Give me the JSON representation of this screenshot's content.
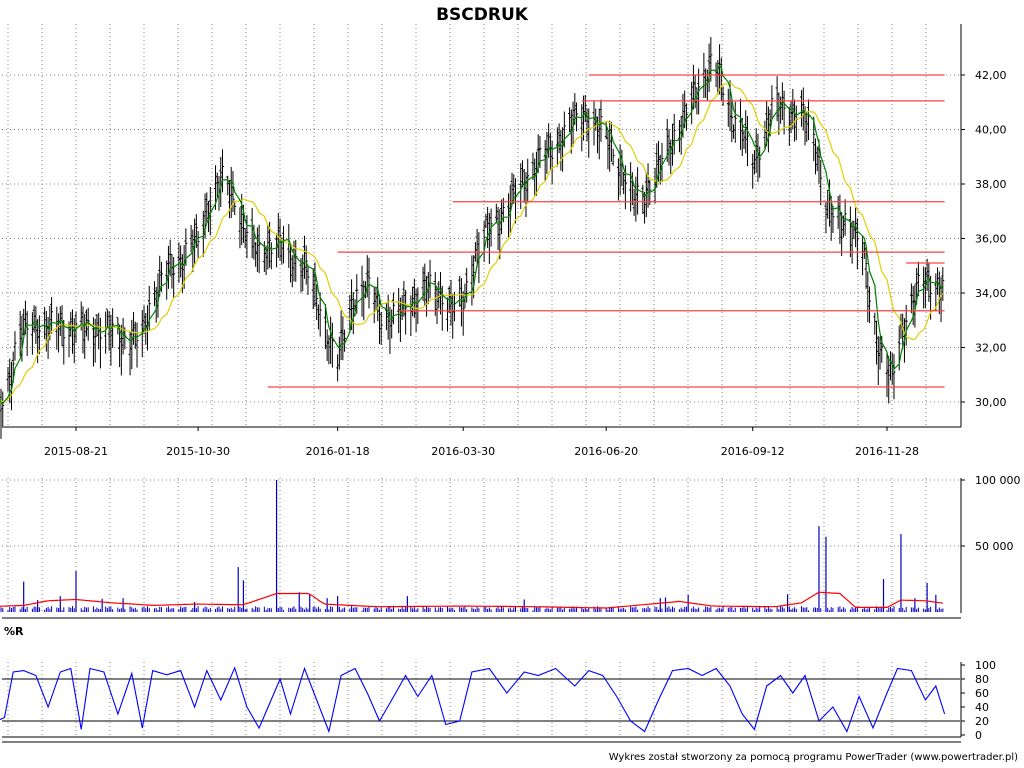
{
  "chart_data": [
    {
      "type": "ohlc",
      "title": "BSCDRUK",
      "x_labels": [
        "2015-08-21",
        "2015-10-30",
        "2016-01-18",
        "2016-03-30",
        "2016-06-20",
        "2016-09-12",
        "2016-11-28"
      ],
      "y_ticks": [
        "30,00",
        "32,00",
        "34,00",
        "36,00",
        "38,00",
        "40,00",
        "42,00"
      ],
      "ylim": [
        29.0,
        43.2
      ],
      "grid": true,
      "support_resistance": [
        {
          "from": "2016-06-10",
          "to": "2016-12-31",
          "value": 42.0
        },
        {
          "from": "2016-06-06",
          "to": "2016-12-31",
          "value": 41.05
        },
        {
          "from": "2016-03-24",
          "to": "2016-12-31",
          "value": 37.35
        },
        {
          "from": "2016-01-18",
          "to": "2016-12-31",
          "value": 35.5
        },
        {
          "from": "2016-12-09",
          "to": "2016-12-31",
          "value": 35.1
        },
        {
          "from": "2016-02-22",
          "to": "2016-12-31",
          "value": 33.35
        },
        {
          "from": "2015-12-09",
          "to": "2016-12-31",
          "value": 30.55
        }
      ],
      "price_anchors": [
        [
          "2015-07-01",
          30.0
        ],
        [
          "2015-07-08",
          29.8
        ],
        [
          "2015-07-14",
          31.0
        ],
        [
          "2015-07-20",
          32.6
        ],
        [
          "2015-07-28",
          33.0
        ],
        [
          "2015-08-04",
          32.7
        ],
        [
          "2015-08-11",
          32.9
        ],
        [
          "2015-08-21",
          32.7
        ],
        [
          "2015-09-01",
          32.8
        ],
        [
          "2015-09-10",
          32.6
        ],
        [
          "2015-09-20",
          32.4
        ],
        [
          "2015-09-28",
          32.4
        ],
        [
          "2015-10-03",
          33.8
        ],
        [
          "2015-10-10",
          34.7
        ],
        [
          "2015-10-20",
          35.2
        ],
        [
          "2015-10-26",
          36.0
        ],
        [
          "2015-10-30",
          35.8
        ],
        [
          "2015-11-06",
          37.6
        ],
        [
          "2015-11-12",
          38.2
        ],
        [
          "2015-11-20",
          37.5
        ],
        [
          "2015-11-27",
          36.3
        ],
        [
          "2015-12-04",
          35.4
        ],
        [
          "2015-12-10",
          35.9
        ],
        [
          "2015-12-16",
          35.9
        ],
        [
          "2015-12-22",
          35.3
        ],
        [
          "2015-12-30",
          35.2
        ],
        [
          "2016-01-08",
          33.3
        ],
        [
          "2016-01-18",
          31.6
        ],
        [
          "2016-01-28",
          34.0
        ],
        [
          "2016-02-05",
          34.3
        ],
        [
          "2016-02-12",
          33.3
        ],
        [
          "2016-02-20",
          33.1
        ],
        [
          "2016-02-28",
          33.7
        ],
        [
          "2016-03-08",
          34.2
        ],
        [
          "2016-03-18",
          34.0
        ],
        [
          "2016-03-24",
          33.5
        ],
        [
          "2016-03-30",
          33.7
        ],
        [
          "2016-04-06",
          35.5
        ],
        [
          "2016-04-14",
          36.4
        ],
        [
          "2016-04-22",
          37.0
        ],
        [
          "2016-05-02",
          38.0
        ],
        [
          "2016-05-12",
          38.9
        ],
        [
          "2016-05-22",
          39.5
        ],
        [
          "2016-06-01",
          40.3
        ],
        [
          "2016-06-08",
          40.7
        ],
        [
          "2016-06-15",
          40.1
        ],
        [
          "2016-06-22",
          39.6
        ],
        [
          "2016-06-28",
          38.7
        ],
        [
          "2016-07-04",
          37.6
        ],
        [
          "2016-07-10",
          37.6
        ],
        [
          "2016-07-18",
          38.3
        ],
        [
          "2016-07-26",
          39.5
        ],
        [
          "2016-08-04",
          40.5
        ],
        [
          "2016-08-12",
          41.7
        ],
        [
          "2016-08-20",
          42.5
        ],
        [
          "2016-08-26",
          41.6
        ],
        [
          "2016-09-01",
          40.5
        ],
        [
          "2016-09-06",
          40.0
        ],
        [
          "2016-09-12",
          38.8
        ],
        [
          "2016-09-18",
          39.8
        ],
        [
          "2016-09-24",
          40.9
        ],
        [
          "2016-10-02",
          40.8
        ],
        [
          "2016-10-10",
          40.6
        ],
        [
          "2016-10-18",
          39.6
        ],
        [
          "2016-10-24",
          37.3
        ],
        [
          "2016-10-30",
          36.6
        ],
        [
          "2016-11-06",
          36.8
        ],
        [
          "2016-11-14",
          35.6
        ],
        [
          "2016-11-20",
          33.0
        ],
        [
          "2016-11-26",
          31.5
        ],
        [
          "2016-12-01",
          30.9
        ],
        [
          "2016-12-06",
          32.6
        ],
        [
          "2016-12-12",
          33.7
        ],
        [
          "2016-12-18",
          34.4
        ],
        [
          "2016-12-24",
          34.5
        ],
        [
          "2016-12-31",
          34.2
        ]
      ],
      "series": [
        {
          "name": "close",
          "color": "#000000"
        },
        {
          "name": "ma_short",
          "color": "#008000"
        },
        {
          "name": "ma_long",
          "color": "#e0d000"
        }
      ],
      "colors": {
        "resistance": "#ff4040",
        "grid": "#808080"
      }
    },
    {
      "type": "bar",
      "y_ticks": [
        "50 000",
        "100 000"
      ],
      "ylim": [
        0,
        100000
      ],
      "grid": true,
      "spikes": [
        [
          "2015-07-04",
          14000
        ],
        [
          "2015-07-22",
          23000
        ],
        [
          "2015-07-30",
          9000
        ],
        [
          "2015-08-12",
          12000
        ],
        [
          "2015-08-21",
          31000
        ],
        [
          "2015-09-05",
          10000
        ],
        [
          "2015-09-17",
          10500
        ],
        [
          "2015-10-28",
          7500
        ],
        [
          "2015-11-22",
          34000
        ],
        [
          "2015-11-25",
          24000
        ],
        [
          "2015-12-14",
          100000
        ],
        [
          "2015-12-27",
          15000
        ],
        [
          "2016-01-02",
          14000
        ],
        [
          "2016-01-12",
          10500
        ],
        [
          "2016-01-18",
          12000
        ],
        [
          "2016-02-27",
          12000
        ],
        [
          "2016-05-04",
          9500
        ],
        [
          "2016-07-21",
          10500
        ],
        [
          "2016-07-24",
          11000
        ],
        [
          "2016-08-06",
          13000
        ],
        [
          "2016-10-02",
          13500
        ],
        [
          "2016-10-20",
          65000
        ],
        [
          "2016-10-24",
          57000
        ],
        [
          "2016-11-26",
          25000
        ],
        [
          "2016-12-06",
          59000
        ],
        [
          "2016-12-14",
          10500
        ],
        [
          "2016-12-21",
          22000
        ],
        [
          "2016-12-26",
          13000
        ]
      ],
      "ma_anchors": [
        [
          "2015-07-01",
          4000
        ],
        [
          "2015-07-22",
          5000
        ],
        [
          "2015-08-05",
          8500
        ],
        [
          "2015-08-21",
          9500
        ],
        [
          "2015-09-10",
          7000
        ],
        [
          "2015-10-05",
          5000
        ],
        [
          "2015-10-28",
          6000
        ],
        [
          "2015-11-25",
          5500
        ],
        [
          "2015-12-14",
          14000
        ],
        [
          "2016-01-02",
          14000
        ],
        [
          "2016-01-10",
          6000
        ],
        [
          "2016-02-10",
          4000
        ],
        [
          "2016-03-30",
          4500
        ],
        [
          "2016-05-10",
          4000
        ],
        [
          "2016-06-20",
          3000
        ],
        [
          "2016-08-01",
          8000
        ],
        [
          "2016-08-20",
          4500
        ],
        [
          "2016-09-25",
          4000
        ],
        [
          "2016-10-10",
          7000
        ],
        [
          "2016-10-20",
          15000
        ],
        [
          "2016-11-01",
          14000
        ],
        [
          "2016-11-10",
          3500
        ],
        [
          "2016-11-28",
          3500
        ],
        [
          "2016-12-06",
          9000
        ],
        [
          "2016-12-20",
          8500
        ],
        [
          "2016-12-31",
          6500
        ]
      ],
      "colors": {
        "bars": "#0000c0",
        "ma": "#ff0000"
      }
    },
    {
      "type": "line",
      "name": "%R",
      "y_ticks": [
        "0",
        "20",
        "40",
        "60",
        "80",
        "100"
      ],
      "ylim": [
        0,
        100
      ],
      "levels": [
        20,
        80
      ],
      "points": [
        [
          "2015-07-01",
          45
        ],
        [
          "2015-07-05",
          18
        ],
        [
          "2015-07-11",
          25
        ],
        [
          "2015-07-16",
          90
        ],
        [
          "2015-07-22",
          92
        ],
        [
          "2015-07-29",
          85
        ],
        [
          "2015-08-05",
          40
        ],
        [
          "2015-08-12",
          90
        ],
        [
          "2015-08-18",
          95
        ],
        [
          "2015-08-24",
          8
        ],
        [
          "2015-08-29",
          95
        ],
        [
          "2015-09-06",
          90
        ],
        [
          "2015-09-14",
          30
        ],
        [
          "2015-09-22",
          88
        ],
        [
          "2015-09-28",
          10
        ],
        [
          "2015-10-04",
          92
        ],
        [
          "2015-10-12",
          86
        ],
        [
          "2015-10-20",
          92
        ],
        [
          "2015-10-28",
          40
        ],
        [
          "2015-11-04",
          92
        ],
        [
          "2015-11-12",
          50
        ],
        [
          "2015-11-20",
          96
        ],
        [
          "2015-11-27",
          40
        ],
        [
          "2015-12-04",
          10
        ],
        [
          "2015-12-10",
          45
        ],
        [
          "2015-12-16",
          80
        ],
        [
          "2015-12-22",
          30
        ],
        [
          "2015-12-30",
          95
        ],
        [
          "2016-01-06",
          50
        ],
        [
          "2016-01-13",
          5
        ],
        [
          "2016-01-20",
          85
        ],
        [
          "2016-01-28",
          95
        ],
        [
          "2016-02-04",
          60
        ],
        [
          "2016-02-11",
          20
        ],
        [
          "2016-02-18",
          50
        ],
        [
          "2016-02-26",
          85
        ],
        [
          "2016-03-04",
          55
        ],
        [
          "2016-03-12",
          85
        ],
        [
          "2016-03-20",
          15
        ],
        [
          "2016-03-28",
          20
        ],
        [
          "2016-04-04",
          90
        ],
        [
          "2016-04-14",
          95
        ],
        [
          "2016-04-24",
          60
        ],
        [
          "2016-05-04",
          90
        ],
        [
          "2016-05-12",
          85
        ],
        [
          "2016-05-22",
          95
        ],
        [
          "2016-06-02",
          70
        ],
        [
          "2016-06-10",
          92
        ],
        [
          "2016-06-18",
          85
        ],
        [
          "2016-06-26",
          55
        ],
        [
          "2016-07-04",
          20
        ],
        [
          "2016-07-12",
          5
        ],
        [
          "2016-07-20",
          50
        ],
        [
          "2016-07-28",
          92
        ],
        [
          "2016-08-06",
          95
        ],
        [
          "2016-08-14",
          85
        ],
        [
          "2016-08-22",
          95
        ],
        [
          "2016-08-30",
          70
        ],
        [
          "2016-09-06",
          30
        ],
        [
          "2016-09-13",
          8
        ],
        [
          "2016-09-20",
          70
        ],
        [
          "2016-09-28",
          85
        ],
        [
          "2016-10-05",
          60
        ],
        [
          "2016-10-12",
          85
        ],
        [
          "2016-10-20",
          20
        ],
        [
          "2016-10-28",
          40
        ],
        [
          "2016-11-05",
          5
        ],
        [
          "2016-11-12",
          55
        ],
        [
          "2016-11-20",
          10
        ],
        [
          "2016-11-28",
          60
        ],
        [
          "2016-12-04",
          95
        ],
        [
          "2016-12-12",
          92
        ],
        [
          "2016-12-20",
          50
        ],
        [
          "2016-12-26",
          70
        ],
        [
          "2016-12-31",
          30
        ]
      ],
      "colors": {
        "line": "#0000ff",
        "levels": "#000000"
      }
    }
  ],
  "footer": "Wykres został stworzony za pomocą programu PowerTrader (www.powertrader.pl)"
}
